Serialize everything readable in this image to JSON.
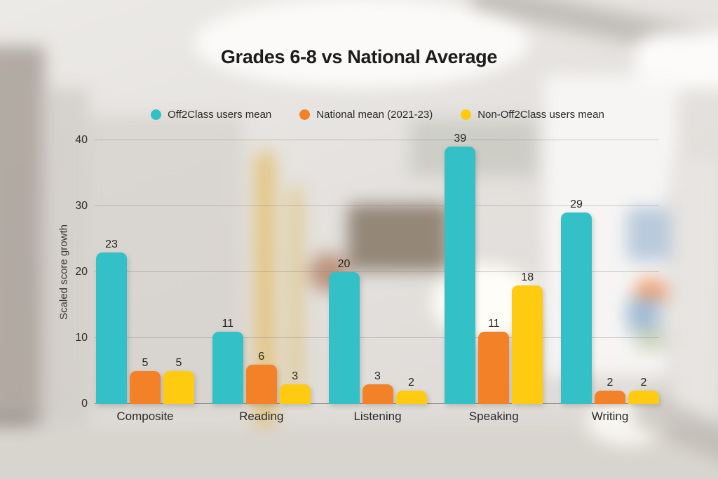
{
  "title": "Grades 6-8 vs National Average",
  "chart_data": {
    "type": "bar",
    "title": "Grades 6-8 vs National Average",
    "categories": [
      "Composite",
      "Reading",
      "Listening",
      "Speaking",
      "Writing"
    ],
    "series": [
      {
        "name": "Off2Class users mean",
        "color": "#33C0C7",
        "values": [
          23,
          11,
          20,
          39,
          29
        ]
      },
      {
        "name": "National mean (2021-23)",
        "color": "#F28127",
        "values": [
          5,
          6,
          3,
          11,
          2
        ]
      },
      {
        "name": "Non-Off2Class users mean",
        "color": "#FECB10",
        "values": [
          5,
          3,
          2,
          18,
          2
        ]
      }
    ],
    "xlabel": "",
    "ylabel": "Scaled score growth",
    "ylim": [
      0,
      40
    ],
    "yticks": [
      0,
      10,
      20,
      30,
      40
    ],
    "grid": true,
    "legend_position": "top"
  }
}
